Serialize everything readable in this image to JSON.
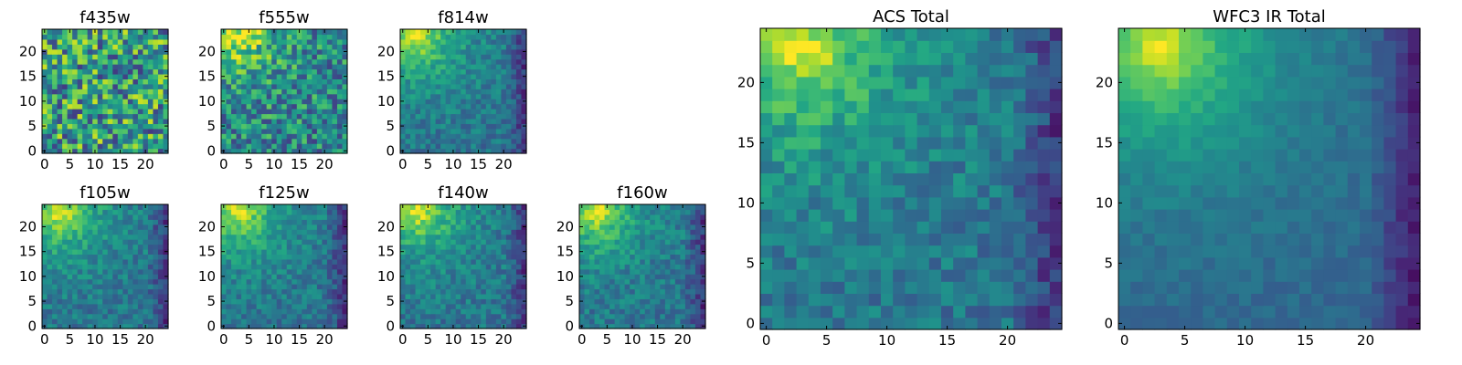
{
  "chart_data": [
    {
      "type": "heatmap",
      "title": "f435w",
      "xlim": [
        0,
        24
      ],
      "ylim": [
        0,
        24
      ],
      "xticks": [
        "0",
        "5",
        "10",
        "15",
        "20"
      ],
      "yticks": [
        "0",
        "5",
        "10",
        "15",
        "20"
      ],
      "pattern": "noise",
      "seed": 11,
      "colormap": "viridis"
    },
    {
      "type": "heatmap",
      "title": "f555w",
      "xlim": [
        0,
        24
      ],
      "ylim": [
        0,
        24
      ],
      "xticks": [
        "0",
        "5",
        "10",
        "15",
        "20"
      ],
      "yticks": [
        "0",
        "5",
        "10",
        "15",
        "20"
      ],
      "pattern": "noisy-bright-top-left",
      "seed": 23,
      "colormap": "viridis"
    },
    {
      "type": "heatmap",
      "title": "f814w",
      "xlim": [
        0,
        24
      ],
      "ylim": [
        0,
        24
      ],
      "xticks": [
        "0",
        "5",
        "10",
        "15",
        "20"
      ],
      "yticks": [
        "0",
        "5",
        "10",
        "15",
        "20"
      ],
      "pattern": "bright-top-left",
      "seed": 37,
      "colormap": "viridis"
    },
    {
      "type": "heatmap",
      "title": "f105w",
      "xlim": [
        0,
        24
      ],
      "ylim": [
        0,
        24
      ],
      "xticks": [
        "0",
        "5",
        "10",
        "15",
        "20"
      ],
      "yticks": [
        "0",
        "5",
        "10",
        "15",
        "20"
      ],
      "pattern": "bright-top-left",
      "seed": 41,
      "colormap": "viridis"
    },
    {
      "type": "heatmap",
      "title": "f125w",
      "xlim": [
        0,
        24
      ],
      "ylim": [
        0,
        24
      ],
      "xticks": [
        "0",
        "5",
        "10",
        "15",
        "20"
      ],
      "yticks": [
        "0",
        "5",
        "10",
        "15",
        "20"
      ],
      "pattern": "bright-top-left",
      "seed": 53,
      "colormap": "viridis"
    },
    {
      "type": "heatmap",
      "title": "f140w",
      "xlim": [
        0,
        24
      ],
      "ylim": [
        0,
        24
      ],
      "xticks": [
        "0",
        "5",
        "10",
        "15",
        "20"
      ],
      "yticks": [
        "0",
        "5",
        "10",
        "15",
        "20"
      ],
      "pattern": "bright-top-left",
      "seed": 67,
      "colormap": "viridis"
    },
    {
      "type": "heatmap",
      "title": "f160w",
      "xlim": [
        0,
        24
      ],
      "ylim": [
        0,
        24
      ],
      "xticks": [
        "0",
        "5",
        "10",
        "15",
        "20"
      ],
      "yticks": [
        "0",
        "5",
        "10",
        "15",
        "20"
      ],
      "pattern": "bright-top-left",
      "seed": 71,
      "colormap": "viridis"
    },
    {
      "type": "heatmap",
      "title": "ACS Total",
      "xlim": [
        0,
        24
      ],
      "ylim": [
        0,
        24
      ],
      "xticks": [
        "0",
        "5",
        "10",
        "15",
        "20"
      ],
      "yticks": [
        "0",
        "5",
        "10",
        "15",
        "20"
      ],
      "pattern": "bright-top-left",
      "seed": 83,
      "colormap": "viridis"
    },
    {
      "type": "heatmap",
      "title": "WFC3 IR Total",
      "xlim": [
        0,
        24
      ],
      "ylim": [
        0,
        24
      ],
      "xticks": [
        "0",
        "5",
        "10",
        "15",
        "20"
      ],
      "yticks": [
        "0",
        "5",
        "10",
        "15",
        "20"
      ],
      "pattern": "smooth-bright-top-left",
      "seed": 97,
      "colormap": "viridis"
    }
  ]
}
